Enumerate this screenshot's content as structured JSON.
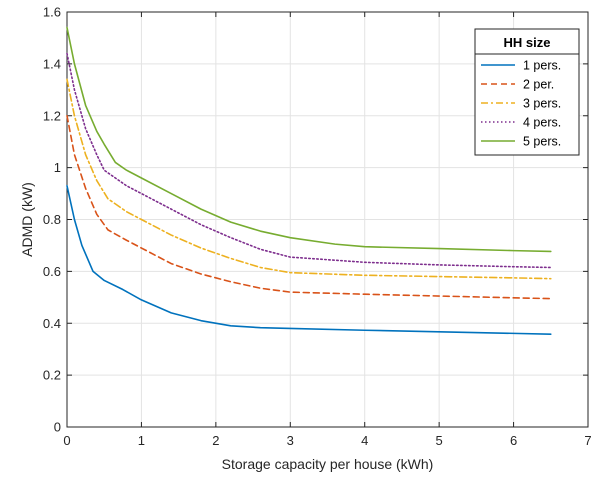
{
  "chart_data": {
    "type": "line",
    "xlabel": "Storage capacity per house (kWh)",
    "ylabel": "ADMD (kW)",
    "xlim": [
      0,
      7
    ],
    "ylim": [
      0,
      1.6
    ],
    "xticks": [
      0,
      1,
      2,
      3,
      4,
      5,
      6,
      7
    ],
    "yticks": [
      0,
      0.2,
      0.4,
      0.6,
      0.8,
      1,
      1.2,
      1.4,
      1.6
    ],
    "xtick_labels": [
      "0",
      "1",
      "2",
      "3",
      "4",
      "5",
      "6",
      "7"
    ],
    "ytick_labels": [
      "0",
      "0.2",
      "0.4",
      "0.6",
      "0.8",
      "1",
      "1.2",
      "1.4",
      "1.6"
    ],
    "grid": true,
    "legend": {
      "title": "HH size",
      "position": "top-right"
    },
    "series": [
      {
        "name": "1 pers.",
        "color": "#0072BD",
        "dash": "solid",
        "x": [
          0,
          0.1,
          0.2,
          0.35,
          0.5,
          0.75,
          1.0,
          1.4,
          1.8,
          2.2,
          2.6,
          3.0,
          4.0,
          5.0,
          6.0,
          6.5
        ],
        "y": [
          0.93,
          0.8,
          0.7,
          0.6,
          0.565,
          0.53,
          0.49,
          0.44,
          0.41,
          0.39,
          0.383,
          0.38,
          0.373,
          0.367,
          0.361,
          0.358
        ]
      },
      {
        "name": "2 per.",
        "color": "#D95319",
        "dash": "dashed",
        "x": [
          0,
          0.1,
          0.25,
          0.4,
          0.55,
          0.8,
          1.0,
          1.4,
          1.8,
          2.2,
          2.6,
          3.0,
          4.0,
          5.0,
          6.0,
          6.5
        ],
        "y": [
          1.2,
          1.05,
          0.92,
          0.82,
          0.76,
          0.72,
          0.69,
          0.63,
          0.59,
          0.56,
          0.535,
          0.52,
          0.512,
          0.505,
          0.498,
          0.495
        ]
      },
      {
        "name": "3 pers.",
        "color": "#EDB120",
        "dash": "dashdot",
        "x": [
          0,
          0.1,
          0.25,
          0.4,
          0.55,
          0.8,
          1.0,
          1.4,
          1.8,
          2.2,
          2.6,
          3.0,
          4.0,
          5.0,
          6.0,
          6.5
        ],
        "y": [
          1.34,
          1.2,
          1.05,
          0.95,
          0.88,
          0.83,
          0.8,
          0.74,
          0.69,
          0.65,
          0.615,
          0.595,
          0.585,
          0.58,
          0.575,
          0.572
        ]
      },
      {
        "name": "4 pers.",
        "color": "#7E2F8E",
        "dash": "dotted",
        "x": [
          0,
          0.1,
          0.25,
          0.4,
          0.5,
          0.8,
          1.0,
          1.4,
          1.8,
          2.2,
          2.6,
          3.0,
          4.0,
          5.0,
          6.0,
          6.5
        ],
        "y": [
          1.44,
          1.3,
          1.15,
          1.05,
          0.99,
          0.93,
          0.9,
          0.84,
          0.78,
          0.73,
          0.685,
          0.655,
          0.635,
          0.625,
          0.618,
          0.615
        ]
      },
      {
        "name": "5 pers.",
        "color": "#77AC30",
        "dash": "solid",
        "x": [
          0,
          0.1,
          0.25,
          0.4,
          0.5,
          0.65,
          0.8,
          1.0,
          1.4,
          1.8,
          2.2,
          2.6,
          3.0,
          3.6,
          4.0,
          5.0,
          6.0,
          6.5
        ],
        "y": [
          1.54,
          1.4,
          1.24,
          1.14,
          1.09,
          1.02,
          0.99,
          0.96,
          0.9,
          0.84,
          0.79,
          0.755,
          0.73,
          0.705,
          0.695,
          0.688,
          0.68,
          0.677
        ]
      }
    ]
  }
}
